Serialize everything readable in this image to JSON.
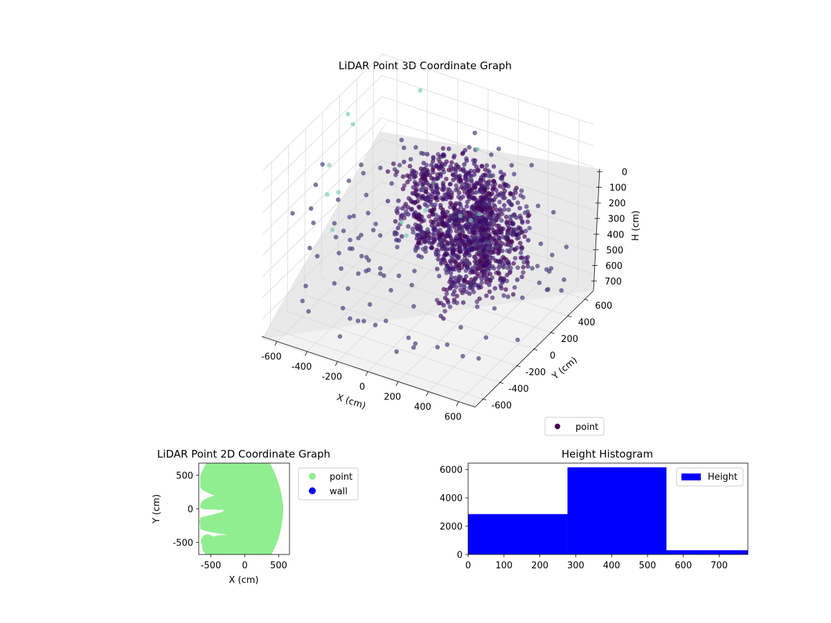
{
  "chart_data": [
    {
      "type": "scatter3d",
      "title": "LiDAR Point 3D Coordinate Graph",
      "xlabel": "X (cm)",
      "ylabel": "Y (cm)",
      "zlabel": "H (cm)",
      "xlim": [
        -700,
        700
      ],
      "ylim": [
        -700,
        700
      ],
      "zlim": [
        0,
        780
      ],
      "z_inverted": true,
      "x_ticks": [
        -600,
        -400,
        -200,
        0,
        200,
        400,
        600
      ],
      "y_ticks": [
        -600,
        -400,
        -200,
        0,
        200,
        400,
        600
      ],
      "z_ticks": [
        0,
        100,
        200,
        300,
        400,
        500,
        600,
        700
      ],
      "grid": true,
      "legend": {
        "placement": "bottom-right",
        "entries": [
          "point"
        ]
      },
      "colormap": "viridis",
      "marker_color": "#440154",
      "series": [
        {
          "name": "point",
          "shape": "partial cylinder ring of points around the sensor",
          "radius_range": [
            300,
            700
          ],
          "height_range": [
            200,
            600
          ],
          "count": 9300
        }
      ]
    },
    {
      "type": "scatter",
      "title": "LiDAR Point 2D Coordinate Graph",
      "xlabel": "X (cm)",
      "ylabel": "Y (cm)",
      "xlim": [
        -680,
        660
      ],
      "ylim": [
        -680,
        680
      ],
      "x_ticks": [
        -500,
        0,
        500
      ],
      "y_ticks": [
        -500,
        0,
        500
      ],
      "legend": {
        "placement": "outside-right-top",
        "entries": [
          "point",
          "wall"
        ]
      },
      "series": [
        {
          "name": "point",
          "color": "#90ee90"
        },
        {
          "name": "wall",
          "color": "#0000ff"
        }
      ]
    },
    {
      "type": "histogram",
      "title": "Height Histogram",
      "bin_edges": [
        0,
        277,
        553,
        780
      ],
      "values": [
        2850,
        6150,
        300
      ],
      "xlim": [
        0,
        780
      ],
      "ylim": [
        0,
        6450
      ],
      "x_ticks": [
        0,
        100,
        200,
        300,
        400,
        500,
        600,
        700
      ],
      "y_ticks": [
        0,
        2000,
        4000,
        6000
      ],
      "color": "#0000ff",
      "legend": {
        "placement": "top-right",
        "entries": [
          "Height"
        ]
      },
      "series": [
        {
          "name": "Height"
        }
      ]
    }
  ]
}
